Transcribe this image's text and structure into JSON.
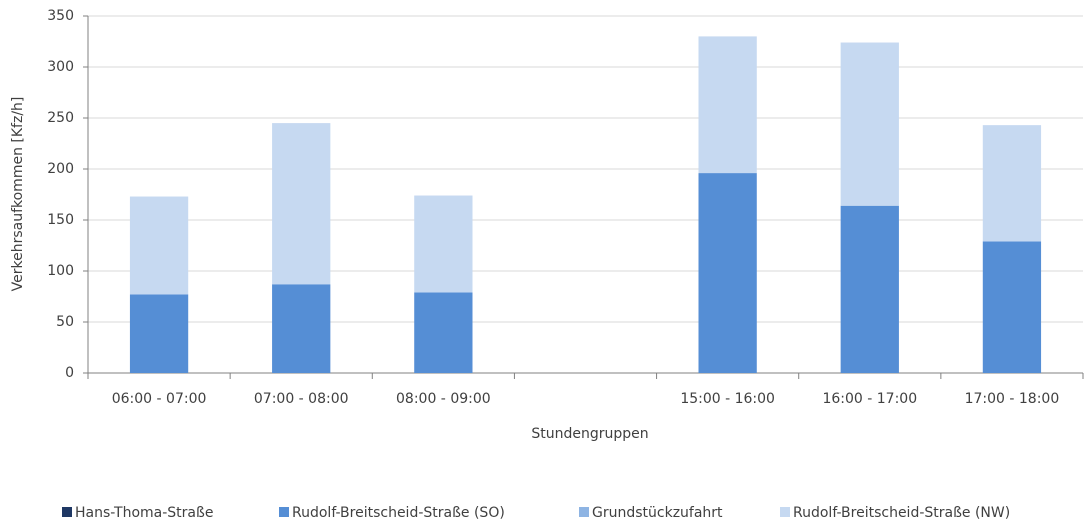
{
  "chart_data": {
    "type": "stacked_bar",
    "xlabel": "Stundengruppen",
    "ylabel": "Verkehrsaufkommen [Kfz/h]",
    "categories": [
      "06:00 - 07:00",
      "07:00 - 08:00",
      "08:00 - 09:00",
      null,
      "15:00 - 16:00",
      "16:00 - 17:00",
      "17:00 - 18:00"
    ],
    "series": [
      {
        "name": "Hans-Thoma-Straße",
        "color": "#1f3864",
        "values": [
          0,
          0,
          0,
          null,
          0,
          0,
          0
        ]
      },
      {
        "name": "Rudolf-Breitscheid-Straße (SO)",
        "color": "#558ed5",
        "values": [
          77,
          87,
          79,
          null,
          196,
          164,
          129
        ]
      },
      {
        "name": "Grundstückzufahrt",
        "color": "#8eb4e3",
        "values": [
          0,
          0,
          0,
          null,
          0,
          0,
          0
        ]
      },
      {
        "name": "Rudolf-Breitscheid-Straße (NW)",
        "color": "#c6d9f1",
        "values": [
          96,
          158,
          95,
          null,
          134,
          160,
          114
        ]
      }
    ],
    "ylim": [
      0,
      350
    ],
    "yticks": [
      0,
      50,
      100,
      150,
      200,
      250,
      300,
      350
    ],
    "grid": true,
    "legend": "bottom"
  }
}
